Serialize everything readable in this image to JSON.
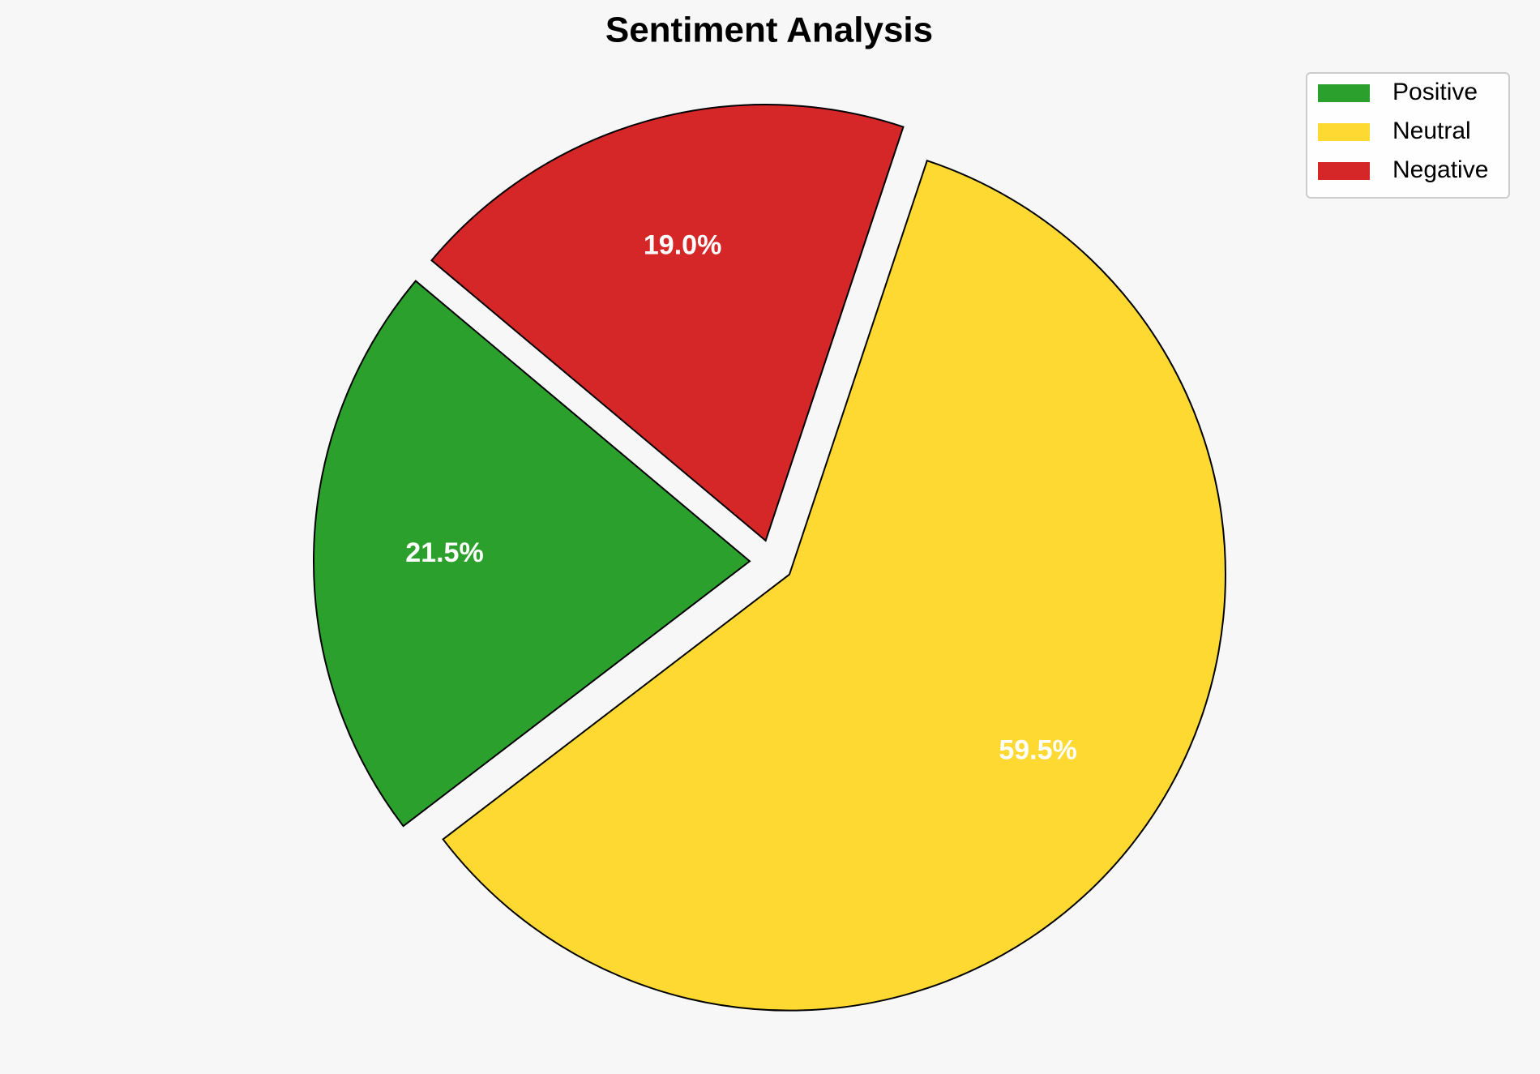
{
  "chart_data": {
    "type": "pie",
    "title": "Sentiment Analysis",
    "categories": [
      "Positive",
      "Neutral",
      "Negative"
    ],
    "values": [
      21.5,
      59.5,
      19.0
    ],
    "value_labels": [
      "21.5%",
      "59.5%",
      "19.0%"
    ],
    "colors": [
      "#2ca02c",
      "#fdd931",
      "#d62728"
    ],
    "legend": "upper right"
  }
}
